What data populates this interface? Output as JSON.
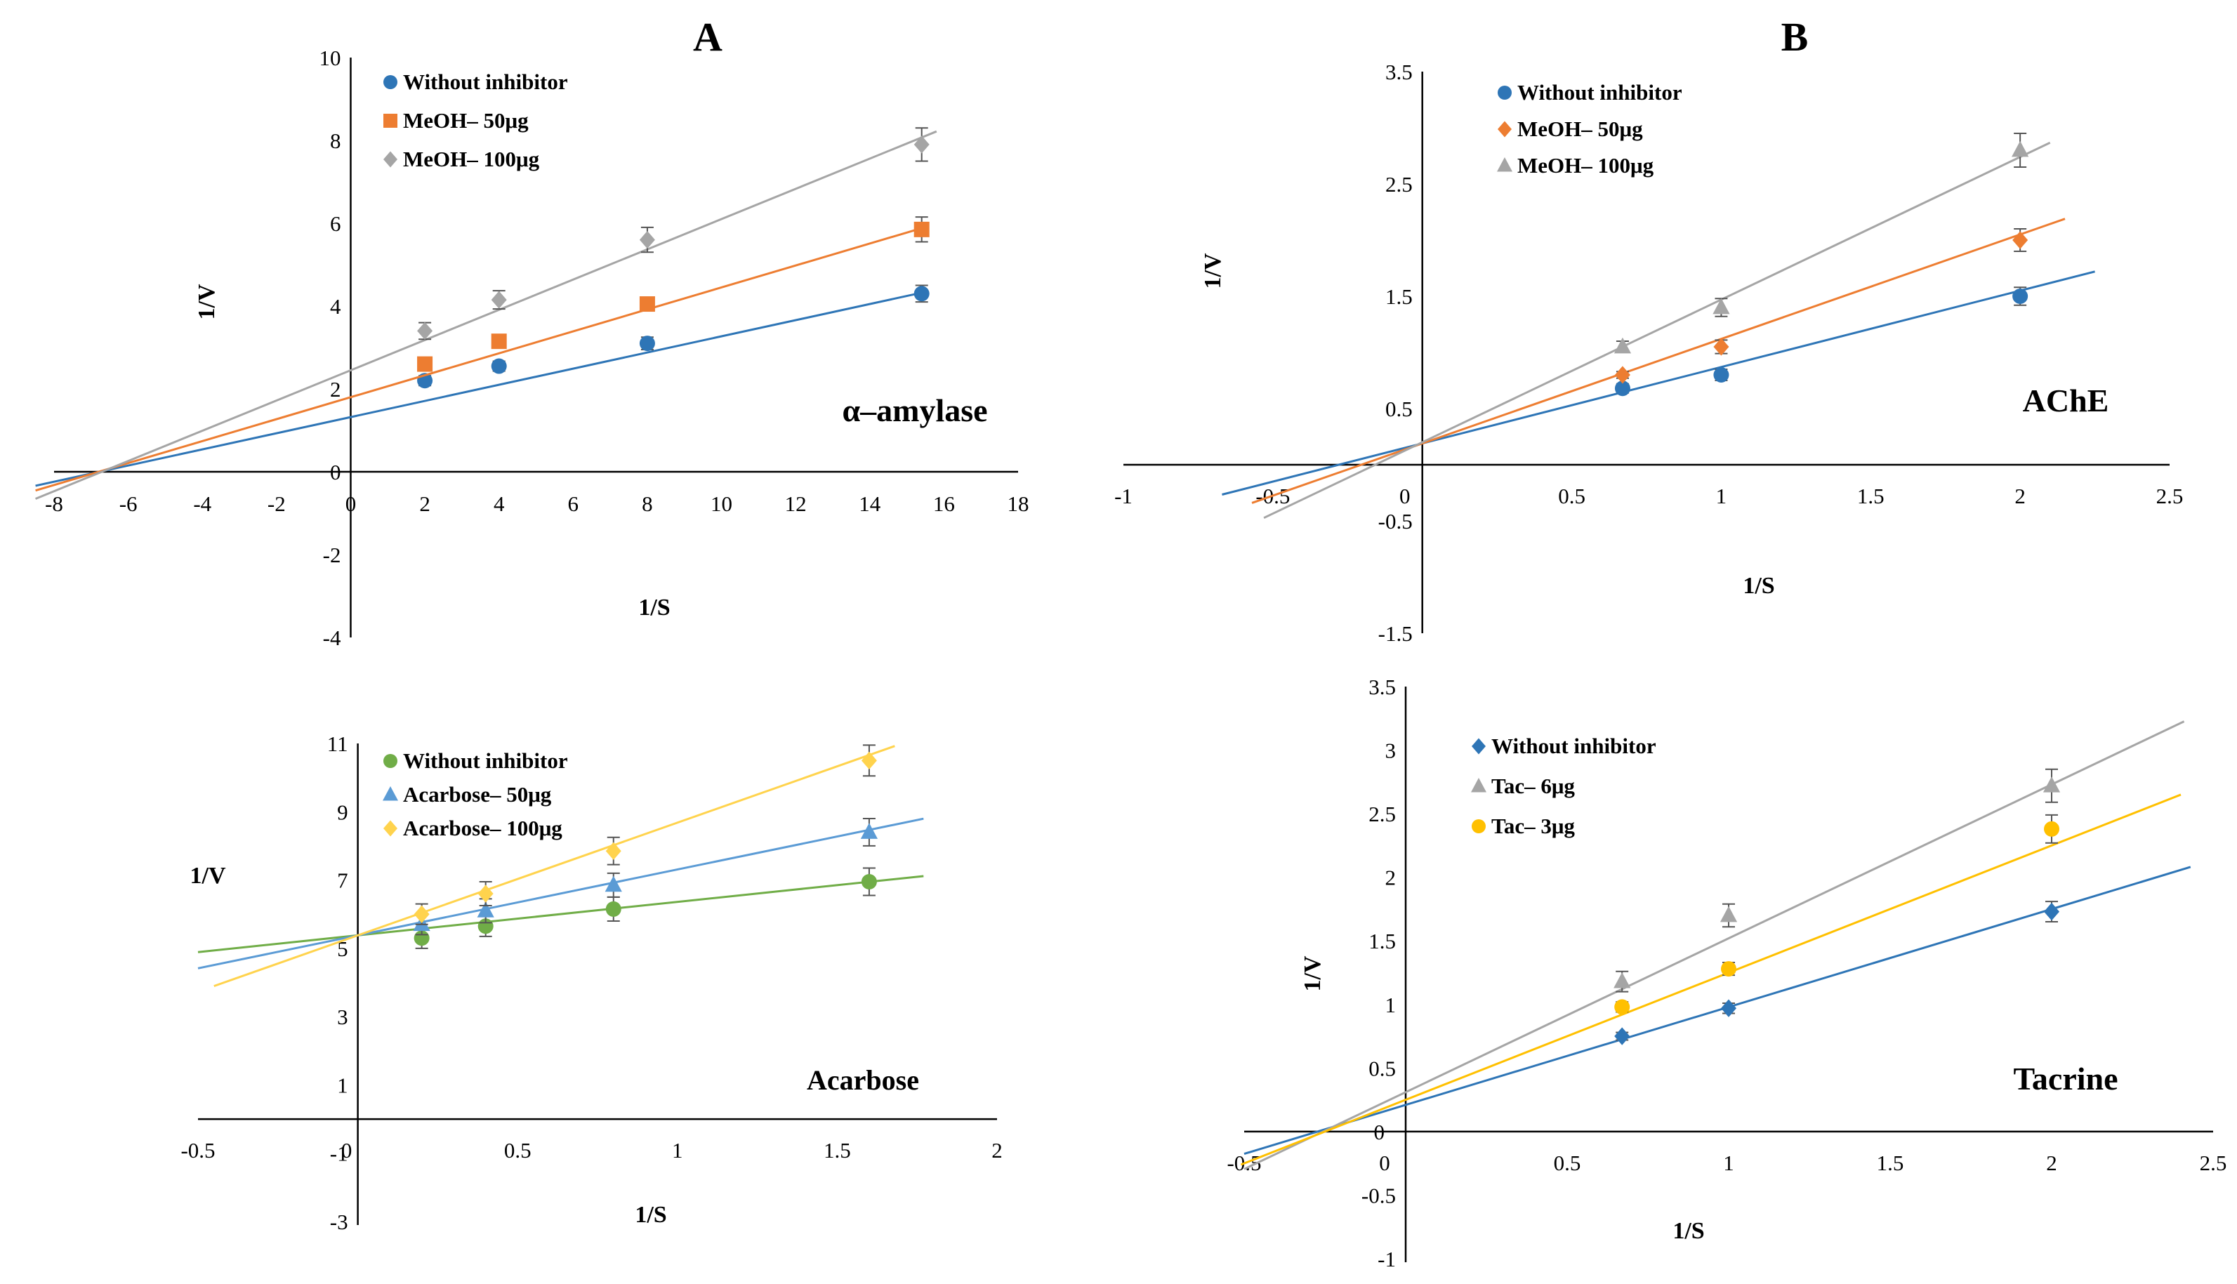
{
  "panel_labels": {
    "A": "A",
    "B": "B"
  },
  "chart_data": [
    {
      "id": "amylase",
      "type": "scatter",
      "title": "α–amylase",
      "xlabel": "1/S",
      "ylabel": "1/V",
      "xlim": [
        -8,
        18
      ],
      "ylim": [
        -4,
        10
      ],
      "x_ticks": [
        "-8",
        "-6",
        "-4",
        "-2",
        "0",
        "2",
        "4",
        "6",
        "8",
        "10",
        "12",
        "14",
        "16",
        "18"
      ],
      "y_ticks": [
        "-4",
        "-2",
        "0",
        "2",
        "4",
        "6",
        "8",
        "10"
      ],
      "series": [
        {
          "name": "Without inhibitor",
          "color": "#2E75B6",
          "marker": "circle",
          "x": [
            2,
            4,
            8,
            15.4
          ],
          "y": [
            2.2,
            2.55,
            3.1,
            4.3
          ],
          "err": [
            0.12,
            0.12,
            0.15,
            0.2
          ],
          "fit": {
            "x0": -8.5,
            "x1": 15.5,
            "slope": 0.195,
            "intercept": 1.32
          }
        },
        {
          "name": "MeOH–  50μg",
          "color": "#ED7D31",
          "marker": "square",
          "x": [
            2,
            4,
            8,
            15.4
          ],
          "y": [
            2.6,
            3.15,
            4.05,
            5.85
          ],
          "err": [
            0.1,
            0.12,
            0.15,
            0.3
          ],
          "fit": {
            "x0": -8.5,
            "x1": 15.5,
            "slope": 0.265,
            "intercept": 1.8
          }
        },
        {
          "name": "MeOH– 100μg",
          "color": "#A5A5A5",
          "marker": "diamond",
          "x": [
            2,
            4,
            8,
            15.4
          ],
          "y": [
            3.4,
            4.15,
            5.6,
            7.9
          ],
          "err": [
            0.2,
            0.22,
            0.3,
            0.4
          ],
          "fit": {
            "x0": -8.5,
            "x1": 15.8,
            "slope": 0.365,
            "intercept": 2.45
          }
        }
      ]
    },
    {
      "id": "ache",
      "type": "scatter",
      "title": "AChE",
      "xlabel": "1/S",
      "ylabel": "1/V",
      "xlim": [
        -1,
        2.5
      ],
      "ylim": [
        -1.5,
        3.5
      ],
      "x_ticks": [
        "-1",
        "-0.5",
        "0",
        "0.5",
        "1",
        "1.5",
        "2",
        "2.5"
      ],
      "y_ticks": [
        "-1.5",
        "-0.5",
        "0.5",
        "1.5",
        "2.5",
        "3.5"
      ],
      "series": [
        {
          "name": "Without inhibitor",
          "color": "#2E75B6",
          "marker": "circle",
          "x": [
            0.67,
            1,
            2
          ],
          "y": [
            0.68,
            0.8,
            1.5
          ],
          "err": [
            0.04,
            0.05,
            0.08
          ],
          "fit": {
            "x0": -0.67,
            "x1": 2.25,
            "slope": 0.68,
            "intercept": 0.19
          }
        },
        {
          "name": "MeOH–  50μg",
          "color": "#ED7D31",
          "marker": "diamond",
          "x": [
            0.67,
            1,
            2
          ],
          "y": [
            0.8,
            1.05,
            2.0
          ],
          "err": [
            0.03,
            0.06,
            0.1
          ],
          "fit": {
            "x0": -0.57,
            "x1": 2.15,
            "slope": 0.93,
            "intercept": 0.19
          }
        },
        {
          "name": "MeOH– 100μg",
          "color": "#A5A5A5",
          "marker": "triangle",
          "x": [
            0.67,
            1,
            2
          ],
          "y": [
            1.05,
            1.4,
            2.8
          ],
          "err": [
            0.05,
            0.08,
            0.15
          ],
          "fit": {
            "x0": -0.53,
            "x1": 2.1,
            "slope": 1.27,
            "intercept": 0.2
          }
        }
      ]
    },
    {
      "id": "acarbose",
      "type": "scatter",
      "title": "Acarbose",
      "xlabel": "1/S",
      "ylabel": "1/V",
      "xlim": [
        -0.5,
        2
      ],
      "ylim": [
        -3,
        11
      ],
      "x_ticks": [
        "-0.5",
        "0",
        "0.5",
        "1",
        "1.5",
        "2"
      ],
      "y_ticks": [
        "-3",
        "-1",
        "1",
        "3",
        "5",
        "7",
        "9",
        "11"
      ],
      "series": [
        {
          "name": "Without inhibitor",
          "color": "#70AD47",
          "marker": "circle",
          "x": [
            0.2,
            0.4,
            0.8,
            1.6
          ],
          "y": [
            5.3,
            5.65,
            6.15,
            6.95
          ],
          "err": [
            0.3,
            0.3,
            0.35,
            0.4
          ],
          "fit": {
            "x0": -0.5,
            "x1": 1.77,
            "slope": 0.98,
            "intercept": 5.38
          }
        },
        {
          "name": "Acarbose– 50μg",
          "color": "#5B9BD5",
          "marker": "triangle",
          "x": [
            0.2,
            0.4,
            0.8,
            1.6
          ],
          "y": [
            5.7,
            6.1,
            6.85,
            8.4
          ],
          "err": [
            0.3,
            0.35,
            0.35,
            0.4
          ],
          "fit": {
            "x0": -0.5,
            "x1": 1.77,
            "slope": 1.93,
            "intercept": 5.38
          }
        },
        {
          "name": "Acarbose– 100μg",
          "color": "#FFD34D",
          "marker": "diamond",
          "x": [
            0.2,
            0.4,
            0.8,
            1.6
          ],
          "y": [
            6.0,
            6.6,
            7.85,
            10.5
          ],
          "err": [
            0.3,
            0.35,
            0.4,
            0.45
          ],
          "fit": {
            "x0": -0.45,
            "x1": 1.68,
            "slope": 3.3,
            "intercept": 5.38
          }
        }
      ]
    },
    {
      "id": "tacrine",
      "type": "scatter",
      "title": "Tacrine",
      "xlabel": "1/S",
      "ylabel": "1/V",
      "xlim": [
        -0.5,
        2.5
      ],
      "ylim": [
        -1,
        3.5
      ],
      "x_ticks": [
        "-0.5",
        "0",
        "0.5",
        "1",
        "1.5",
        "2",
        "2.5"
      ],
      "y_ticks": [
        "-1",
        "-0.5",
        "0",
        "0.5",
        "1",
        "1.5",
        "2",
        "2.5",
        "3",
        "3.5"
      ],
      "series": [
        {
          "name": "Without inhibitor",
          "color": "#2E75B6",
          "marker": "diamond",
          "x": [
            0.67,
            1,
            2
          ],
          "y": [
            0.75,
            0.97,
            1.73
          ],
          "err": [
            0.03,
            0.04,
            0.08
          ],
          "fit": {
            "x0": -0.5,
            "x1": 2.43,
            "slope": 0.77,
            "intercept": 0.21
          }
        },
        {
          "name": "Tac– 6μg",
          "color": "#A5A5A5",
          "marker": "triangle",
          "x": [
            0.67,
            1,
            2
          ],
          "y": [
            1.18,
            1.7,
            2.72
          ],
          "err": [
            0.08,
            0.09,
            0.13
          ],
          "fit": {
            "x0": -0.5,
            "x1": 2.41,
            "slope": 1.21,
            "intercept": 0.31
          }
        },
        {
          "name": "Tac– 3μg",
          "color": "#FFC000",
          "marker": "circle",
          "x": [
            0.67,
            1,
            2
          ],
          "y": [
            0.98,
            1.28,
            2.38
          ],
          "err": [
            0.04,
            0.05,
            0.11
          ],
          "fit": {
            "x0": -0.51,
            "x1": 2.4,
            "slope": 1.0,
            "intercept": 0.25
          }
        }
      ]
    }
  ]
}
